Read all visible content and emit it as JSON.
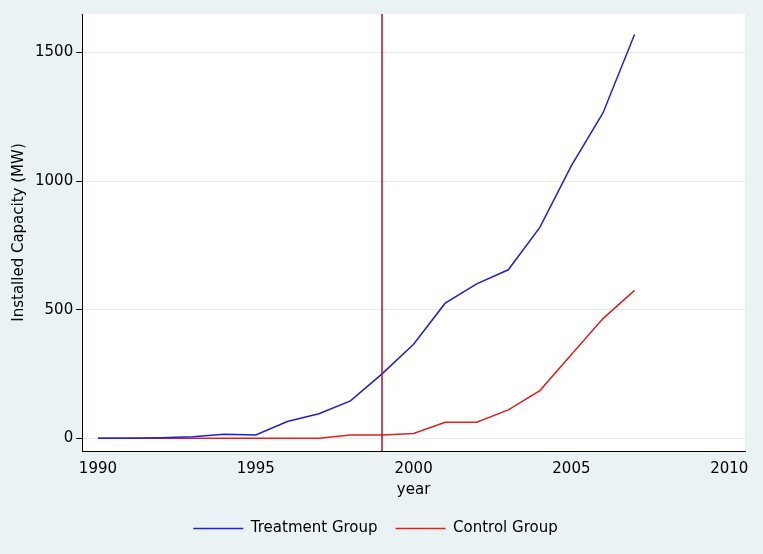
{
  "chart_data": {
    "type": "line",
    "x_label": "year",
    "y_label": "Installed Capacity (MW)",
    "x": [
      1990,
      1991,
      1992,
      1993,
      1994,
      1995,
      1996,
      1997,
      1998,
      1999,
      2000,
      2001,
      2002,
      2003,
      2004,
      2005,
      2006,
      2007
    ],
    "series": [
      {
        "name": "Treatment Group",
        "color": "#1f1fd6",
        "values": [
          0,
          0,
          2,
          5,
          15,
          12,
          65,
          95,
          145,
          250,
          365,
          525,
          600,
          655,
          820,
          1060,
          1265,
          1570
        ]
      },
      {
        "name": "Control Group",
        "color": "#e0201e",
        "values": [
          0,
          0,
          0,
          0,
          0,
          0,
          0,
          0,
          12,
          12,
          18,
          62,
          62,
          110,
          185,
          325,
          465,
          575
        ]
      }
    ],
    "reference_lines": [
      {
        "x": 1999,
        "color": "#b0102a"
      }
    ],
    "xlim": [
      1989.5,
      2010.5
    ],
    "xticks": [
      1990,
      1995,
      2000,
      2005,
      2010
    ],
    "ylim": [
      -50,
      1650
    ],
    "yticks": [
      0,
      500,
      1000,
      1500
    ],
    "grid": "y",
    "legend": "bottom"
  }
}
